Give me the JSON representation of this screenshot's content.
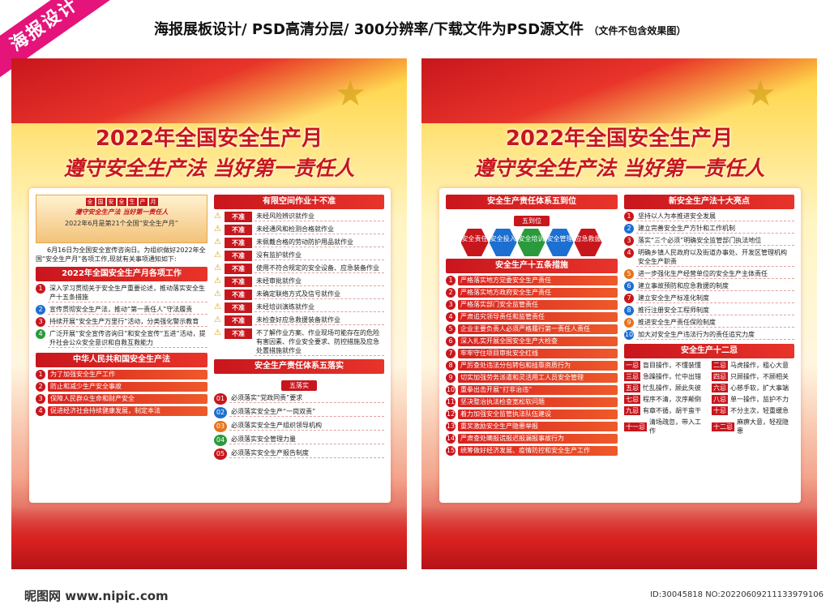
{
  "header": {
    "watermark": "海报设计",
    "desc": "海报展板设计/ PSD高清分层/ 300分辨率/下载文件为PSD源文件",
    "note": "（文件不包含效果图）"
  },
  "poster": {
    "title": "2022年全国安全生产月",
    "slogan": "遵守安全生产法 当好第一责任人"
  },
  "left": {
    "mini_tags": [
      "全",
      "国",
      "安",
      "全",
      "生",
      "产",
      "月"
    ],
    "mini_slogan": "遵守安全生产法 当好第一责任人",
    "mini_sub": "2022年6月是第21个全国“安全生产月”",
    "intro": "6月16日为全国安全宣传咨询日。为组织做好2022年全国“安全生产月”各项工作,现就有关事项通知如下:",
    "tasks_title": "2022年全国安全生产月各项工作",
    "tasks": [
      "深入学习贯彻关于安全生产重要论述，推动落实安全生产十五条措施",
      "宣传贯彻安全生产法，推动“第一责任人”守法履责",
      "持续开展“安全生产万里行”活动，分类强化警示教育",
      "广泛开展“安全宣传咨询日”和安全宣传“五进”活动，提升社会公众安全意识和自救互救能力"
    ],
    "law_title": "中华人民共和国安全生产法",
    "law": [
      "为了加强安全生产工作",
      "防止和减少生产安全事故",
      "保障人民群众生命和财产安全",
      "促进经济社会持续健康发展，制定本法"
    ],
    "space_title": "有限空间作业十不准",
    "bz": "不准",
    "space": [
      "未经风险辨识就作业",
      "未经通风和检测合格就作业",
      "未佩戴合格的劳动防护用品就作业",
      "没有监护就作业",
      "使用不符合规定的安全设备、应急装备作业",
      "未经审批就作业",
      "未确定联络方式及信号就作业",
      "未经培训演练就作业",
      "未检查好应急救援装备就作业",
      "不了解作业方案、作业现场可能存在的危险有害因素、作业安全要求、防控措施及应急处置措施就作业"
    ],
    "five_title": "安全生产责任体系五落实",
    "five_sub": "五落实",
    "five_nums": [
      "01",
      "02",
      "03",
      "04",
      "05"
    ],
    "five": [
      "必须落实“党政同责”要求",
      "必须落实安全生产“一岗双责”",
      "必须落实安全生产组织领导机构",
      "必须落实安全管理力量",
      "必须落实安全生产报告制度"
    ]
  },
  "right": {
    "dw_title": "安全生产责任体系五到位",
    "dw_sub": "五到位",
    "dw": [
      "安全责任",
      "安全投入",
      "安全培训",
      "安全管理",
      "应急救援"
    ],
    "m15_title": "安全生产十五条措施",
    "m15": [
      "严格落实地方党委安全生产责任",
      "严格落实地方政府安全生产责任",
      "严格落实部门安全监管责任",
      "严肃追究领导责任和监管责任",
      "企业主要负责人必须严格履行第一责任人责任",
      "深入扎实开展全国安全生产大检查",
      "牢牢守住项目审批安全红线",
      "严厉查处违法分包转包和挂靠资质行为",
      "切实加强劳务派遣和灵活用工人员安全管理",
      "重拳出击开展“打非治违”",
      "坚决整治执法检查宽松软问题",
      "着力加强安全监管执法队伍建设",
      "重奖激励安全生产隐患举报",
      "严肃查处瞒报谎报迟报漏报事故行为",
      "统筹做好经济发展、疫情防控和安全生产工作"
    ],
    "hl_title": "新安全生产法十大亮点",
    "hl": [
      "坚持以人为本推进安全发展",
      "建立完善安全生产方针和工作机制",
      "落实“三个必须”明确安全监管部门执法地位",
      "明确乡镇人民政府以及街道办事处、开发区管理机构安全生产职责",
      "进一步强化生产经营单位的安全生产主体责任",
      "建立事故预防和应急救援的制度",
      "建立安全生产标准化制度",
      "推行注册安全工程师制度",
      "推进安全生产责任保险制度",
      "加大对安全生产违法行为的责任追究力度"
    ],
    "e12_title": "安全生产十二忌",
    "e12": [
      [
        "一忌",
        "盲目操作，不懂装懂"
      ],
      [
        "二忌",
        "马虎操作，粗心大意"
      ],
      [
        "三忌",
        "急躁操作，忙中出错"
      ],
      [
        "四忌",
        "只顾操作，不顾相关"
      ],
      [
        "五忌",
        "忙乱操作，顾此失彼"
      ],
      [
        "六忌",
        "心慈手软，扩大事端"
      ],
      [
        "七忌",
        "程序不清，次序颠倒"
      ],
      [
        "八忌",
        "单一操作，监护不力"
      ],
      [
        "九忌",
        "有章不循，胡干蛮干"
      ],
      [
        "十忌",
        "不分主次，轻重缓急"
      ],
      [
        "十一忌",
        "清场疏忽，带入工作"
      ],
      [
        "十二忌",
        "麻痹大意，轻视隐患"
      ]
    ]
  },
  "footer": {
    "site": "昵图网 www.nipic.com",
    "id": "ID:30045818 NO:20220609211133979106"
  }
}
